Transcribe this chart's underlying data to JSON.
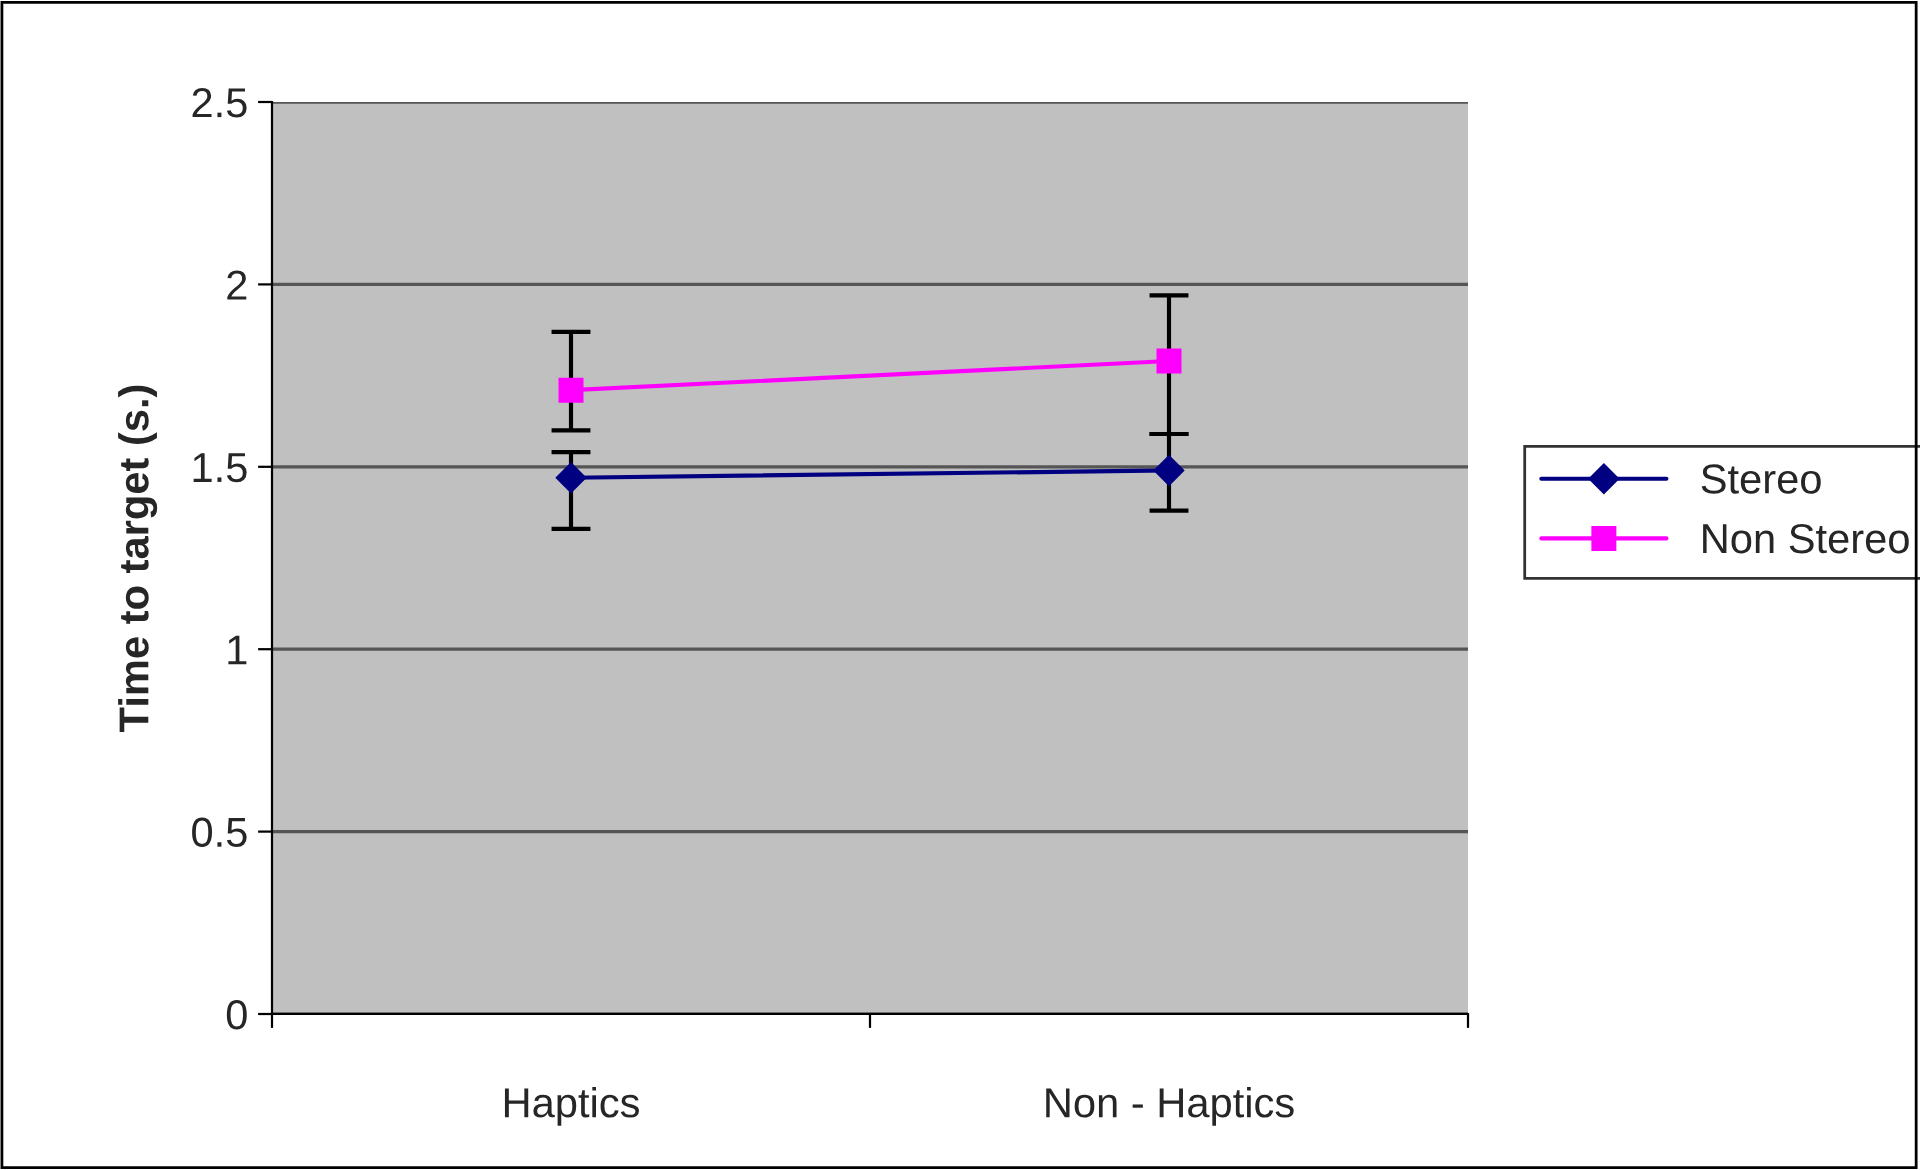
{
  "chart_data": {
    "type": "line",
    "ylabel": "Time to target (s.)",
    "categories": [
      "Haptics",
      "Non - Haptics"
    ],
    "series": [
      {
        "name": "Stereo",
        "color": "#000080",
        "values": [
          1.47,
          1.49
        ],
        "errors": [
          [
            1.33,
            1.54
          ],
          [
            1.38,
            1.59
          ]
        ],
        "marker": "diamond"
      },
      {
        "name": "Non Stereo",
        "color": "#ff00ff",
        "values": [
          1.71,
          1.79
        ],
        "errors": [
          [
            1.6,
            1.87
          ],
          [
            1.59,
            1.97
          ]
        ],
        "marker": "square"
      }
    ],
    "ylim": [
      0,
      2.5
    ],
    "yticks": [
      0,
      0.5,
      1,
      1.5,
      2,
      2.5
    ],
    "grid": "y",
    "legend": "right",
    "line_style": "solid"
  }
}
